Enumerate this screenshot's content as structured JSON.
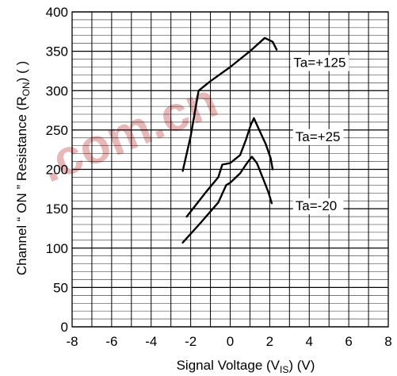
{
  "chart_data": {
    "type": "line",
    "xlabel": "Signal Voltage  (VIS) (V)",
    "xlabel_parts": {
      "pre": "Signal Voltage  (V",
      "sub": "IS",
      "post": ") (V)"
    },
    "ylabel": "Channel “ ON ” Resistance (RON) ( )",
    "ylabel_parts": {
      "pre": "Channel  “ ON ” Resistance (R",
      "sub": "ON",
      "post": ") (  )"
    },
    "xlim": [
      -8,
      8
    ],
    "ylim": [
      0,
      400
    ],
    "x_ticks": [
      -8,
      -6,
      -4,
      -2,
      0,
      2,
      4,
      6,
      8
    ],
    "y_ticks": [
      0,
      50,
      100,
      150,
      200,
      250,
      300,
      350,
      400
    ],
    "x_minor_step": 1,
    "y_minor_step": 10,
    "grid": true,
    "series": [
      {
        "name": "Ta=+125",
        "points": [
          [
            -2.4,
            198
          ],
          [
            -2.0,
            242
          ],
          [
            -1.6,
            300
          ],
          [
            -1.0,
            312
          ],
          [
            0.0,
            330
          ],
          [
            1.0,
            350
          ],
          [
            1.75,
            367
          ],
          [
            2.15,
            362
          ],
          [
            2.35,
            352
          ]
        ]
      },
      {
        "name": "Ta=+25",
        "points": [
          [
            -2.2,
            140
          ],
          [
            -1.2,
            172
          ],
          [
            -0.6,
            190
          ],
          [
            -0.4,
            206
          ],
          [
            0.0,
            208
          ],
          [
            0.5,
            218
          ],
          [
            0.8,
            238
          ],
          [
            1.05,
            257
          ],
          [
            1.2,
            265
          ],
          [
            1.45,
            251
          ],
          [
            1.8,
            232
          ],
          [
            2.05,
            214
          ],
          [
            2.15,
            200
          ]
        ]
      },
      {
        "name": "Ta=-20",
        "points": [
          [
            -2.4,
            107
          ],
          [
            -1.5,
            132
          ],
          [
            -0.6,
            158
          ],
          [
            -0.2,
            180
          ],
          [
            0.0,
            183
          ],
          [
            0.5,
            195
          ],
          [
            0.85,
            208
          ],
          [
            1.1,
            216
          ],
          [
            1.35,
            208
          ],
          [
            1.7,
            186
          ],
          [
            1.95,
            170
          ],
          [
            2.1,
            157
          ]
        ]
      }
    ],
    "annotations": [
      "Ta=+125",
      "Ta=+25",
      "Ta=-20"
    ],
    "watermark": ".com.cn"
  }
}
